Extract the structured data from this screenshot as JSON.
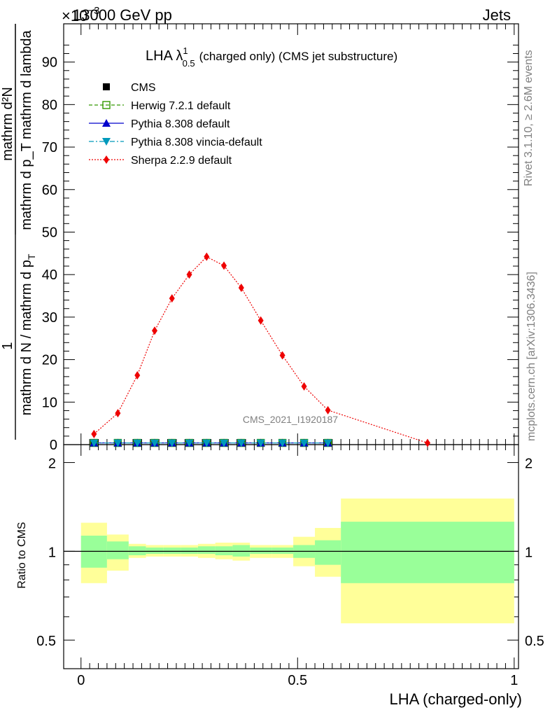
{
  "header": {
    "left": "13000 GeV pp",
    "right": "Jets",
    "exponent": "×10",
    "exponent_power": "−3"
  },
  "side_labels": {
    "rivet": "Rivet 3.1.10, ≥ 2.6M events",
    "mcplots": "mcplots.cern.ch [arXiv:1306.3436]"
  },
  "watermark": "CMS_2021_I1920187",
  "title": {
    "main": "LHA λ",
    "sup": "1",
    "sub": "0.5",
    "rest": "(charged only) (CMS jet substructure)"
  },
  "ylabel_main": {
    "num_1": "1",
    "den_1": "mathrm d N / mathrm d p",
    "num_2": "mathrm d²N",
    "den_2": "mathrm d p",
    "den_2b": "mathrm d p",
    "sub_T": "T",
    "den_2_tail": "mathrm d p",
    "lambda": "mathrm d lambda",
    "frac_top": "mathrm d²N",
    "frac_bottom": "mathrm d p_T mathrm d lambda"
  },
  "ylabel_ratio": "Ratio to CMS",
  "xlabel": "LHA (charged-only)",
  "legend": [
    {
      "label": "CMS",
      "color": "#000000",
      "marker": "square-filled",
      "line": "none"
    },
    {
      "label": "Herwig 7.2.1 default",
      "color": "#339900",
      "marker": "square-open",
      "line": "dashed"
    },
    {
      "label": "Pythia 8.308 default",
      "color": "#0000cc",
      "marker": "triangle-up",
      "line": "solid"
    },
    {
      "label": "Pythia 8.308 vincia-default",
      "color": "#0099bb",
      "marker": "triangle-down",
      "line": "dashdot"
    },
    {
      "label": "Sherpa 2.2.9 default",
      "color": "#ee0000",
      "marker": "diamond",
      "line": "dotted"
    }
  ],
  "chart_data": {
    "type": "line",
    "x_ticks": [
      "0",
      "0.5",
      "1"
    ],
    "y_ticks_main": [
      "0",
      "10",
      "20",
      "30",
      "40",
      "50",
      "60",
      "70",
      "80",
      "90"
    ],
    "y_ticks_ratio_left": [
      "0.5",
      "1",
      "2"
    ],
    "y_ticks_ratio_right": [
      "0.5",
      "1",
      "2"
    ],
    "xlim": [
      -0.04,
      1.01
    ],
    "ylim_main": [
      0,
      99
    ],
    "ylim_ratio": [
      0.4,
      2.3
    ],
    "ratio_log_scale": true,
    "bins": [
      [
        0.0,
        0.06
      ],
      [
        0.06,
        0.11
      ],
      [
        0.11,
        0.15
      ],
      [
        0.15,
        0.19
      ],
      [
        0.19,
        0.23
      ],
      [
        0.23,
        0.27
      ],
      [
        0.27,
        0.31
      ],
      [
        0.31,
        0.35
      ],
      [
        0.35,
        0.39
      ],
      [
        0.39,
        0.44
      ],
      [
        0.44,
        0.49
      ],
      [
        0.49,
        0.54
      ],
      [
        0.54,
        0.6
      ],
      [
        0.6,
        1.0
      ]
    ],
    "series": [
      {
        "name": "CMS",
        "x": [
          0.03,
          0.085,
          0.13,
          0.17,
          0.21,
          0.25,
          0.29,
          0.33,
          0.37,
          0.415,
          0.465,
          0.515,
          0.57
        ],
        "y": [
          0.5,
          0.5,
          0.5,
          0.5,
          0.5,
          0.5,
          0.5,
          0.5,
          0.5,
          0.5,
          0.5,
          0.5,
          0.5
        ]
      },
      {
        "name": "Herwig 7.2.1 default",
        "x": [
          0.03,
          0.085,
          0.13,
          0.17,
          0.21,
          0.25,
          0.29,
          0.33,
          0.37,
          0.415,
          0.465,
          0.515,
          0.57
        ],
        "y": [
          0.4,
          0.4,
          0.4,
          0.4,
          0.4,
          0.4,
          0.4,
          0.4,
          0.4,
          0.4,
          0.4,
          0.4,
          0.4
        ]
      },
      {
        "name": "Pythia 8.308 default",
        "x": [
          0.03,
          0.085,
          0.13,
          0.17,
          0.21,
          0.25,
          0.29,
          0.33,
          0.37,
          0.415,
          0.465,
          0.515,
          0.57
        ],
        "y": [
          0.4,
          0.4,
          0.4,
          0.4,
          0.4,
          0.4,
          0.4,
          0.4,
          0.4,
          0.4,
          0.4,
          0.4,
          0.4
        ]
      },
      {
        "name": "Pythia 8.308 vincia-default",
        "x": [
          0.03,
          0.085,
          0.13,
          0.17,
          0.21,
          0.25,
          0.29,
          0.33,
          0.37,
          0.415,
          0.465,
          0.515,
          0.57
        ],
        "y": [
          0.4,
          0.4,
          0.4,
          0.4,
          0.4,
          0.4,
          0.4,
          0.4,
          0.4,
          0.4,
          0.4,
          0.4,
          0.4
        ]
      },
      {
        "name": "Sherpa 2.2.9 default",
        "x": [
          0.03,
          0.085,
          0.13,
          0.17,
          0.21,
          0.25,
          0.29,
          0.33,
          0.37,
          0.415,
          0.465,
          0.515,
          0.57,
          0.8
        ],
        "y": [
          2.5,
          7.4,
          16.3,
          26.8,
          34.4,
          40.0,
          44.2,
          42.1,
          36.9,
          29.2,
          21.0,
          13.7,
          8.1,
          0.4
        ]
      }
    ],
    "ratio_band_inner": [
      [
        0.88,
        1.13
      ],
      [
        0.94,
        1.08
      ],
      [
        0.97,
        1.04
      ],
      [
        0.98,
        1.03
      ],
      [
        0.98,
        1.03
      ],
      [
        0.98,
        1.03
      ],
      [
        0.98,
        1.04
      ],
      [
        0.97,
        1.04
      ],
      [
        0.96,
        1.05
      ],
      [
        0.98,
        1.03
      ],
      [
        0.98,
        1.03
      ],
      [
        0.95,
        1.05
      ],
      [
        0.9,
        1.09
      ],
      [
        0.78,
        1.26
      ]
    ],
    "ratio_band_outer": [
      [
        0.78,
        1.25
      ],
      [
        0.86,
        1.14
      ],
      [
        0.95,
        1.06
      ],
      [
        0.96,
        1.05
      ],
      [
        0.96,
        1.05
      ],
      [
        0.96,
        1.05
      ],
      [
        0.95,
        1.06
      ],
      [
        0.94,
        1.07
      ],
      [
        0.93,
        1.07
      ],
      [
        0.95,
        1.05
      ],
      [
        0.95,
        1.05
      ],
      [
        0.89,
        1.12
      ],
      [
        0.82,
        1.2
      ],
      [
        0.57,
        1.51
      ]
    ],
    "band_colors": {
      "inner": "#99ff99",
      "outer": "#ffff99"
    }
  }
}
